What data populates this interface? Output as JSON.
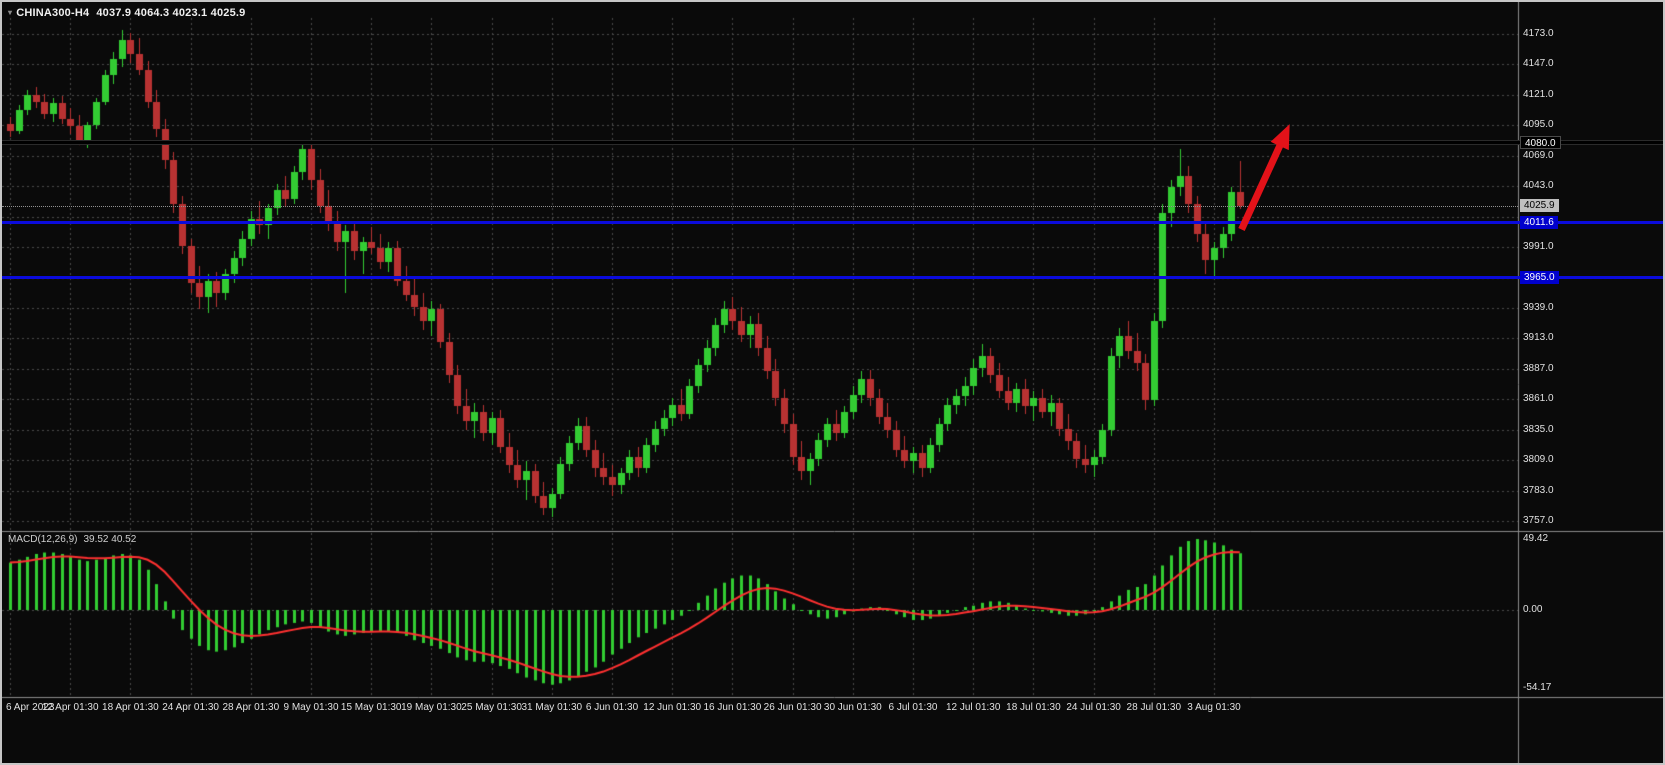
{
  "window": {
    "symbol": "CHINA300-H4",
    "ohlc": "4037.9 4064.3 4023.1 4025.9"
  },
  "price_axis": {
    "min": 3757,
    "max": 4173,
    "step": 26,
    "labels": [
      "4173.0",
      "4147.0",
      "4121.0",
      "4095.0",
      "4069.0",
      "4043.0",
      "3991.0",
      "3939.0",
      "3913.0",
      "3887.0",
      "3861.0",
      "3835.0",
      "3809.0",
      "3783.0",
      "3757.0"
    ],
    "tags": [
      {
        "label": "4080.0",
        "value": 4080.0,
        "bg": "#000000",
        "fg": "#ffffff",
        "border": "#4a4a4a"
      },
      {
        "label": "4025.9",
        "value": 4025.9,
        "bg": "#bfbfbf",
        "fg": "#000000"
      },
      {
        "label": "4011.6",
        "value": 4011.6,
        "bg": "#0000cd",
        "fg": "#ffffff"
      },
      {
        "label": "3965.0",
        "value": 3965.0,
        "bg": "#0000cd",
        "fg": "#ffffff"
      }
    ]
  },
  "time_axis": {
    "labels": [
      {
        "i": 0,
        "t": "6 Apr 2023"
      },
      {
        "i": 7,
        "t": "12 Apr 01:30"
      },
      {
        "i": 14,
        "t": "18 Apr 01:30"
      },
      {
        "i": 21,
        "t": "24 Apr 01:30"
      },
      {
        "i": 28,
        "t": "28 Apr 01:30"
      },
      {
        "i": 35,
        "t": "9 May 01:30"
      },
      {
        "i": 42,
        "t": "15 May 01:30"
      },
      {
        "i": 49,
        "t": "19 May 01:30"
      },
      {
        "i": 56,
        "t": "25 May 01:30"
      },
      {
        "i": 63,
        "t": "31 May 01:30"
      },
      {
        "i": 70,
        "t": "6 Jun 01:30"
      },
      {
        "i": 77,
        "t": "12 Jun 01:30"
      },
      {
        "i": 84,
        "t": "16 Jun 01:30"
      },
      {
        "i": 91,
        "t": "26 Jun 01:30"
      },
      {
        "i": 98,
        "t": "30 Jun 01:30"
      },
      {
        "i": 105,
        "t": "6 Jul 01:30"
      },
      {
        "i": 112,
        "t": "12 Jul 01:30"
      },
      {
        "i": 119,
        "t": "18 Jul 01:30"
      },
      {
        "i": 126,
        "t": "24 Jul 01:30"
      },
      {
        "i": 133,
        "t": "28 Jul 01:30"
      },
      {
        "i": 140,
        "t": "3 Aug 01:30"
      }
    ]
  },
  "macd_panel": {
    "title": "MACD(12,26,9)",
    "values": "39.52 40.52",
    "ticks": [
      {
        "v": 49.42,
        "t": "49.42"
      },
      {
        "v": 0,
        "t": "0.00"
      },
      {
        "v": -54.17,
        "t": "-54.17"
      }
    ],
    "range": [
      -54.17,
      49.42
    ]
  },
  "levels": [
    {
      "name": "resistance-line-4080",
      "value": 4080.0,
      "color": "#000000",
      "width": 3,
      "style": "solid"
    },
    {
      "name": "support-line-4011",
      "value": 4011.6,
      "color": "#0b0bdc",
      "width": 3,
      "style": "solid"
    },
    {
      "name": "support-line-3965",
      "value": 3965.0,
      "color": "#0b0bdc",
      "width": 3,
      "style": "solid"
    },
    {
      "name": "bid-price-line",
      "value": 4025.9,
      "color": "#909090",
      "width": 1,
      "style": "dotted"
    }
  ],
  "annotations": {
    "arrow": {
      "from": {
        "bar": 143.2,
        "price": 4006
      },
      "to": {
        "bar": 148.8,
        "price": 4096
      },
      "color": "#e31219"
    }
  },
  "colors": {
    "background": "#0a0a0a",
    "bull": "#33cc33",
    "bear": "#b83232",
    "macd_hist": "#32cd32",
    "macd_signal": "#ff3030",
    "grid": "#4a4a4a",
    "separator": "#8c8c8c",
    "axis_text": "#e0e0e0"
  },
  "chart_data": {
    "type": "candlestick",
    "title": "CHINA300-H4",
    "symbol": "CHINA300",
    "timeframe": "H4",
    "ylim": [
      3757,
      4173
    ],
    "candles": [
      [
        4096,
        4102,
        4085,
        4090
      ],
      [
        4090,
        4112,
        4088,
        4108
      ],
      [
        4108,
        4125,
        4104,
        4121
      ],
      [
        4121,
        4128,
        4110,
        4115
      ],
      [
        4115,
        4122,
        4100,
        4105
      ],
      [
        4105,
        4118,
        4098,
        4114
      ],
      [
        4114,
        4120,
        4096,
        4100
      ],
      [
        4100,
        4110,
        4088,
        4094
      ],
      [
        4094,
        4104,
        4078,
        4082
      ],
      [
        4082,
        4098,
        4076,
        4095
      ],
      [
        4095,
        4118,
        4092,
        4115
      ],
      [
        4115,
        4142,
        4112,
        4138
      ],
      [
        4138,
        4158,
        4130,
        4152
      ],
      [
        4152,
        4176,
        4145,
        4168
      ],
      [
        4168,
        4174,
        4148,
        4156
      ],
      [
        4156,
        4170,
        4138,
        4142
      ],
      [
        4142,
        4150,
        4110,
        4115
      ],
      [
        4115,
        4125,
        4085,
        4092
      ],
      [
        4092,
        4100,
        4058,
        4065
      ],
      [
        4065,
        4072,
        4020,
        4028
      ],
      [
        4028,
        4035,
        3985,
        3992
      ],
      [
        3992,
        3998,
        3952,
        3960
      ],
      [
        3960,
        3975,
        3938,
        3948
      ],
      [
        3948,
        3968,
        3935,
        3962
      ],
      [
        3962,
        3970,
        3940,
        3952
      ],
      [
        3952,
        3972,
        3946,
        3968
      ],
      [
        3968,
        3988,
        3960,
        3982
      ],
      [
        3982,
        4005,
        3975,
        3998
      ],
      [
        3998,
        4022,
        3992,
        4015
      ],
      [
        4015,
        4030,
        4002,
        4010
      ],
      [
        4010,
        4028,
        3998,
        4024
      ],
      [
        4024,
        4045,
        4018,
        4040
      ],
      [
        4040,
        4052,
        4025,
        4032
      ],
      [
        4032,
        4060,
        4028,
        4055
      ],
      [
        4055,
        4082,
        4048,
        4075
      ],
      [
        4075,
        4081,
        4040,
        4048
      ],
      [
        4048,
        4058,
        4020,
        4026
      ],
      [
        4026,
        4040,
        4005,
        4012
      ],
      [
        4012,
        4022,
        3988,
        3995
      ],
      [
        3995,
        4010,
        3952,
        4005
      ],
      [
        4005,
        4012,
        3980,
        3988
      ],
      [
        3988,
        4000,
        3968,
        3995
      ],
      [
        3995,
        4008,
        3985,
        3990
      ],
      [
        3990,
        4002,
        3972,
        3978
      ],
      [
        3978,
        3995,
        3970,
        3990
      ],
      [
        3990,
        3996,
        3958,
        3962
      ],
      [
        3962,
        3975,
        3945,
        3950
      ],
      [
        3950,
        3965,
        3932,
        3940
      ],
      [
        3940,
        3952,
        3920,
        3928
      ],
      [
        3928,
        3945,
        3915,
        3938
      ],
      [
        3938,
        3942,
        3905,
        3910
      ],
      [
        3910,
        3918,
        3875,
        3882
      ],
      [
        3882,
        3890,
        3848,
        3855
      ],
      [
        3855,
        3870,
        3835,
        3842
      ],
      [
        3842,
        3858,
        3828,
        3850
      ],
      [
        3850,
        3856,
        3825,
        3832
      ],
      [
        3832,
        3850,
        3822,
        3845
      ],
      [
        3845,
        3852,
        3815,
        3820
      ],
      [
        3820,
        3832,
        3798,
        3805
      ],
      [
        3805,
        3818,
        3785,
        3792
      ],
      [
        3792,
        3808,
        3775,
        3800
      ],
      [
        3800,
        3806,
        3772,
        3778
      ],
      [
        3778,
        3790,
        3762,
        3768
      ],
      [
        3768,
        3785,
        3760,
        3780
      ],
      [
        3780,
        3812,
        3776,
        3806
      ],
      [
        3806,
        3830,
        3800,
        3824
      ],
      [
        3824,
        3845,
        3818,
        3838
      ],
      [
        3838,
        3846,
        3812,
        3818
      ],
      [
        3818,
        3826,
        3795,
        3802
      ],
      [
        3802,
        3815,
        3788,
        3795
      ],
      [
        3795,
        3805,
        3778,
        3788
      ],
      [
        3788,
        3802,
        3780,
        3798
      ],
      [
        3798,
        3818,
        3792,
        3812
      ],
      [
        3812,
        3820,
        3795,
        3802
      ],
      [
        3802,
        3828,
        3798,
        3822
      ],
      [
        3822,
        3842,
        3816,
        3836
      ],
      [
        3836,
        3852,
        3830,
        3845
      ],
      [
        3845,
        3862,
        3838,
        3856
      ],
      [
        3856,
        3870,
        3842,
        3848
      ],
      [
        3848,
        3878,
        3844,
        3872
      ],
      [
        3872,
        3895,
        3866,
        3890
      ],
      [
        3890,
        3912,
        3884,
        3905
      ],
      [
        3905,
        3930,
        3898,
        3924
      ],
      [
        3924,
        3945,
        3918,
        3938
      ],
      [
        3938,
        3948,
        3920,
        3928
      ],
      [
        3928,
        3940,
        3910,
        3916
      ],
      [
        3916,
        3932,
        3905,
        3925
      ],
      [
        3925,
        3935,
        3898,
        3905
      ],
      [
        3905,
        3915,
        3878,
        3885
      ],
      [
        3885,
        3895,
        3855,
        3862
      ],
      [
        3862,
        3870,
        3832,
        3840
      ],
      [
        3840,
        3848,
        3805,
        3812
      ],
      [
        3812,
        3825,
        3792,
        3800
      ],
      [
        3800,
        3815,
        3788,
        3810
      ],
      [
        3810,
        3832,
        3804,
        3826
      ],
      [
        3826,
        3845,
        3820,
        3840
      ],
      [
        3840,
        3852,
        3825,
        3832
      ],
      [
        3832,
        3855,
        3828,
        3850
      ],
      [
        3850,
        3872,
        3844,
        3865
      ],
      [
        3865,
        3885,
        3858,
        3878
      ],
      [
        3878,
        3886,
        3855,
        3862
      ],
      [
        3862,
        3870,
        3840,
        3846
      ],
      [
        3846,
        3858,
        3828,
        3835
      ],
      [
        3835,
        3842,
        3812,
        3818
      ],
      [
        3818,
        3830,
        3802,
        3808
      ],
      [
        3808,
        3820,
        3798,
        3815
      ],
      [
        3815,
        3822,
        3795,
        3802
      ],
      [
        3802,
        3828,
        3798,
        3822
      ],
      [
        3822,
        3845,
        3816,
        3840
      ],
      [
        3840,
        3862,
        3834,
        3856
      ],
      [
        3856,
        3870,
        3848,
        3864
      ],
      [
        3864,
        3880,
        3855,
        3872
      ],
      [
        3872,
        3895,
        3865,
        3888
      ],
      [
        3888,
        3908,
        3880,
        3898
      ],
      [
        3898,
        3905,
        3875,
        3882
      ],
      [
        3882,
        3892,
        3862,
        3868
      ],
      [
        3868,
        3880,
        3852,
        3858
      ],
      [
        3858,
        3875,
        3850,
        3870
      ],
      [
        3870,
        3878,
        3848,
        3855
      ],
      [
        3855,
        3868,
        3842,
        3862
      ],
      [
        3862,
        3870,
        3845,
        3850
      ],
      [
        3850,
        3865,
        3838,
        3858
      ],
      [
        3858,
        3862,
        3830,
        3836
      ],
      [
        3836,
        3848,
        3818,
        3825
      ],
      [
        3825,
        3832,
        3802,
        3810
      ],
      [
        3810,
        3822,
        3798,
        3805
      ],
      [
        3805,
        3818,
        3795,
        3812
      ],
      [
        3812,
        3840,
        3806,
        3835
      ],
      [
        3835,
        3905,
        3830,
        3898
      ],
      [
        3898,
        3922,
        3888,
        3915
      ],
      [
        3915,
        3928,
        3895,
        3902
      ],
      [
        3902,
        3918,
        3885,
        3892
      ],
      [
        3892,
        3900,
        3852,
        3860
      ],
      [
        3860,
        3935,
        3855,
        3928
      ],
      [
        3928,
        4028,
        3922,
        4020
      ],
      [
        4020,
        4048,
        4008,
        4042
      ],
      [
        4042,
        4075,
        4035,
        4052
      ],
      [
        4052,
        4060,
        4020,
        4028
      ],
      [
        4028,
        4035,
        3995,
        4002
      ],
      [
        4002,
        4012,
        3968,
        3980
      ],
      [
        3980,
        3995,
        3965,
        3990
      ],
      [
        3990,
        4008,
        3982,
        4002
      ],
      [
        4002,
        4042,
        3996,
        4038
      ],
      [
        4037.9,
        4064.3,
        4023.1,
        4025.9
      ]
    ],
    "macd": {
      "params": [
        12,
        26,
        9
      ],
      "signal_period": 9,
      "histogram": [
        33,
        35,
        37,
        39,
        40,
        40,
        39,
        37,
        35,
        34,
        35,
        36,
        38,
        39,
        38,
        35,
        28,
        18,
        6,
        -6,
        -14,
        -20,
        -25,
        -28,
        -29,
        -28,
        -26,
        -23,
        -20,
        -17,
        -14,
        -12,
        -10,
        -9,
        -8,
        -9,
        -12,
        -15,
        -17,
        -18,
        -17,
        -16,
        -15,
        -15,
        -15,
        -16,
        -18,
        -21,
        -23,
        -25,
        -27,
        -30,
        -33,
        -35,
        -36,
        -36,
        -37,
        -39,
        -41,
        -44,
        -47,
        -49,
        -51,
        -52,
        -51,
        -49,
        -46,
        -43,
        -40,
        -36,
        -31,
        -27,
        -23,
        -19,
        -16,
        -13,
        -10,
        -7,
        -4,
        0,
        5,
        10,
        15,
        19,
        22,
        24,
        24,
        22,
        18,
        13,
        8,
        4,
        0,
        -3,
        -5,
        -6,
        -5,
        -3,
        -1,
        1,
        2,
        2,
        0,
        -3,
        -5,
        -7,
        -7,
        -6,
        -4,
        -2,
        0,
        2,
        3,
        5,
        6,
        6,
        5,
        3,
        1,
        0,
        -1,
        -2,
        -3,
        -4,
        -4,
        -3,
        -1,
        2,
        6,
        10,
        14,
        16,
        18,
        24,
        31,
        38,
        44,
        48,
        49.4,
        48.5,
        47,
        45,
        42,
        39.5
      ]
    }
  }
}
